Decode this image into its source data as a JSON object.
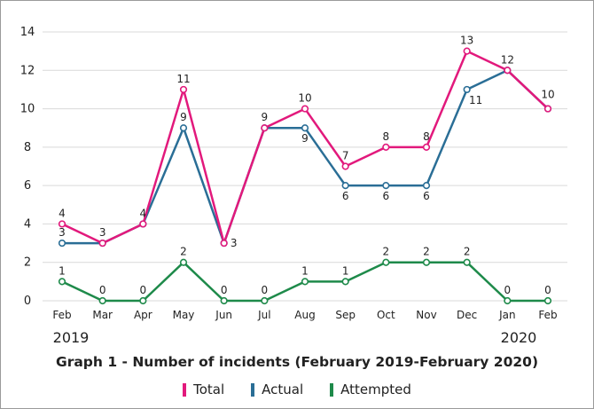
{
  "chart_data": {
    "type": "line",
    "title": "Graph 1 - Number of incidents (February 2019-February 2020)",
    "categories": [
      "Feb",
      "Mar",
      "Apr",
      "May",
      "Jun",
      "Jul",
      "Aug",
      "Sep",
      "Oct",
      "Nov",
      "Dec",
      "Jan",
      "Feb"
    ],
    "year_labels": {
      "start": "2019",
      "end": "2020"
    },
    "ylim": [
      0,
      14
    ],
    "yticks": [
      0,
      2,
      4,
      6,
      8,
      10,
      12,
      14
    ],
    "grid": true,
    "legend_position": "bottom",
    "series": [
      {
        "name": "Total",
        "color": "#e2197c",
        "values": [
          4,
          3,
          4,
          11,
          3,
          9,
          10,
          7,
          8,
          8,
          13,
          12,
          10
        ],
        "labels": [
          "4",
          "3",
          "4",
          "11",
          "3",
          "9",
          "10",
          "7",
          "8",
          "8",
          "13",
          "12",
          "10"
        ]
      },
      {
        "name": "Actual",
        "color": "#2a6e96",
        "values": [
          3,
          3,
          4,
          9,
          3,
          9,
          9,
          6,
          6,
          6,
          11,
          12,
          10
        ],
        "labels": [
          "3",
          "",
          "",
          "9",
          "",
          "",
          "9",
          "6",
          "6",
          "6",
          "11",
          "",
          ""
        ]
      },
      {
        "name": "Attempted",
        "color": "#1e8a4a",
        "values": [
          1,
          0,
          0,
          2,
          0,
          0,
          1,
          1,
          2,
          2,
          2,
          0,
          0
        ],
        "labels": [
          "1",
          "0",
          "0",
          "2",
          "0",
          "0",
          "1",
          "1",
          "2",
          "2",
          "2",
          "0",
          "0"
        ]
      }
    ]
  }
}
